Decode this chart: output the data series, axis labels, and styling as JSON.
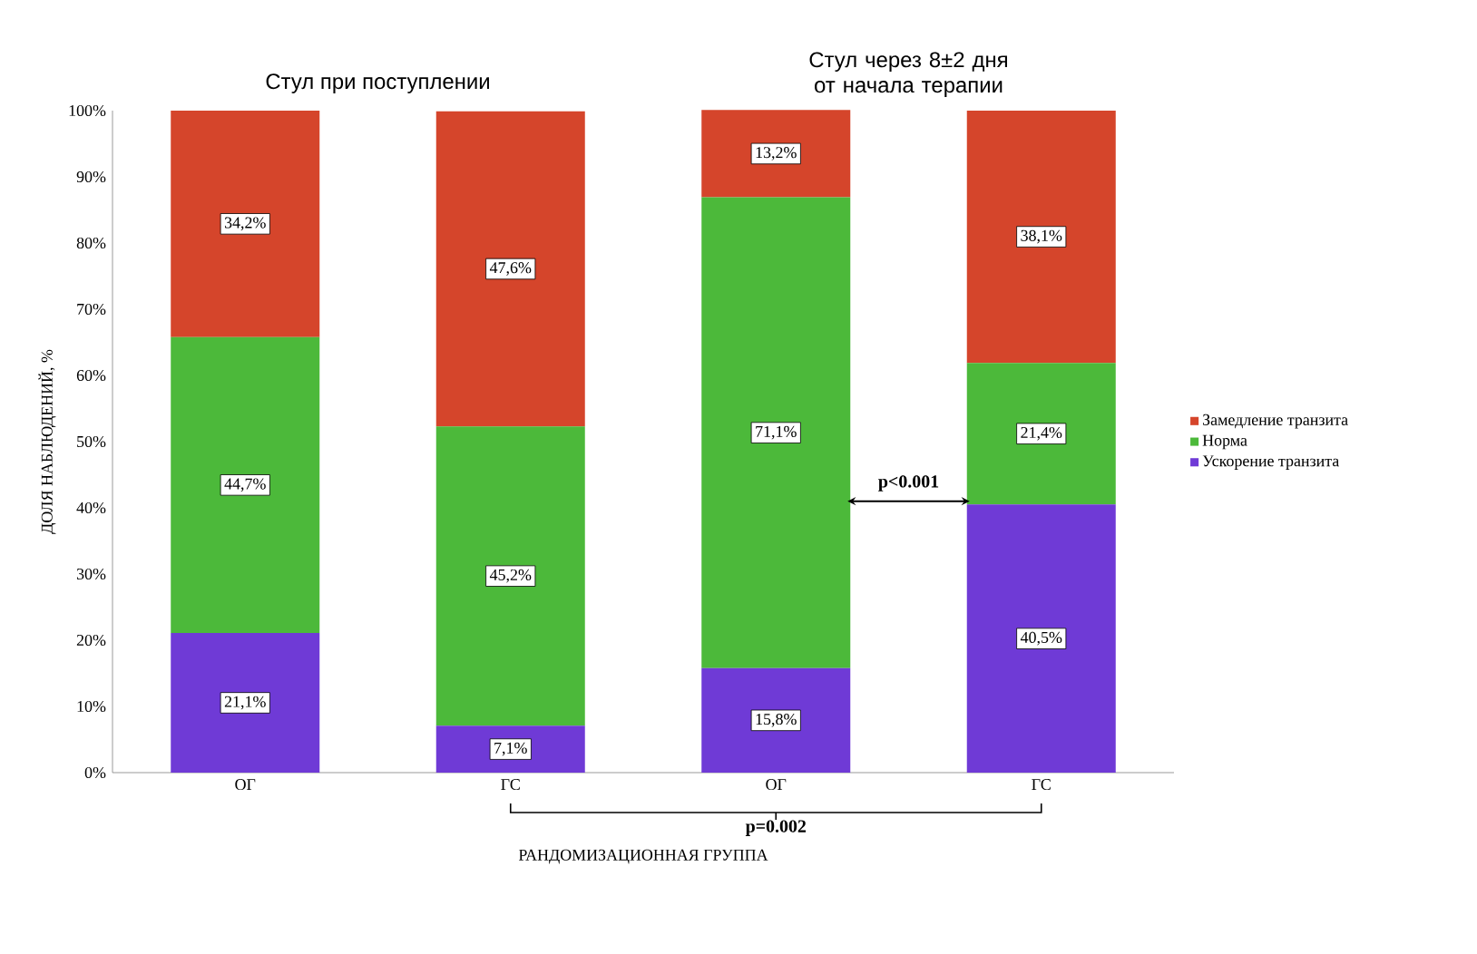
{
  "chart_data": {
    "type": "bar",
    "stacked": true,
    "ylabel": "ДОЛЯ НАБЛЮДЕНИЙ, %",
    "xlabel": "РАНДОМИЗАЦИОННАЯ ГРУППА",
    "categories": [
      "ОГ",
      "ГС",
      "ОГ",
      "ГС"
    ],
    "series": [
      {
        "name": "Ускорение транзита",
        "color": "#6f3ad6",
        "values": [
          21.1,
          7.1,
          15.8,
          40.5
        ],
        "value_labels": [
          "21,1%",
          "7,1%",
          "15,8%",
          "40,5%"
        ]
      },
      {
        "name": "Норма",
        "color": "#4cb93a",
        "values": [
          44.7,
          45.2,
          71.1,
          21.4
        ],
        "value_labels": [
          "44,7%",
          "45,2%",
          "71,1%",
          "21,4%"
        ]
      },
      {
        "name": "Замедление транзита",
        "color": "#d5452b",
        "values": [
          34.2,
          47.6,
          13.2,
          38.1
        ],
        "value_labels": [
          "34,2%",
          "47,6%",
          "13,2%",
          "38,1%"
        ]
      }
    ],
    "ylim": [
      0,
      100
    ],
    "yticks": [
      {
        "value": 0,
        "label": "0%"
      },
      {
        "value": 10,
        "label": "10%"
      },
      {
        "value": 20,
        "label": "20%"
      },
      {
        "value": 30,
        "label": "30%"
      },
      {
        "value": 40,
        "label": "40%"
      },
      {
        "value": 50,
        "label": "50%"
      },
      {
        "value": 60,
        "label": "60%"
      },
      {
        "value": 70,
        "label": "70%"
      },
      {
        "value": 80,
        "label": "80%"
      },
      {
        "value": 90,
        "label": "90%"
      },
      {
        "value": 100,
        "label": "100%"
      }
    ],
    "legend": "right",
    "annotations": [
      "Стул при поступлении",
      "Стул через 8±2 дня от начала терапии",
      "p<0.001",
      "p=0.002"
    ]
  }
}
